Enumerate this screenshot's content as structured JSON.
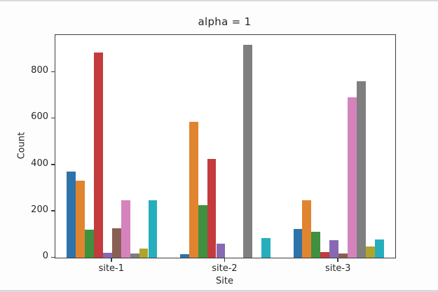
{
  "page": {
    "background": "#ffffff",
    "edge_strip_color": "#dadada"
  },
  "chart_data": {
    "type": "bar",
    "title": "alpha = 1",
    "xlabel": "Site",
    "ylabel": "Count",
    "categories": [
      "site-1",
      "site-2",
      "site-3"
    ],
    "series": [
      {
        "name": "blue",
        "color": "#2e73a9",
        "values": [
          372,
          15,
          123
        ]
      },
      {
        "name": "orange",
        "color": "#e1842f",
        "values": [
          331,
          587,
          247
        ]
      },
      {
        "name": "green",
        "color": "#3f9140",
        "values": [
          120,
          228,
          112
        ]
      },
      {
        "name": "red",
        "color": "#c33b3d",
        "values": [
          884,
          427,
          25
        ]
      },
      {
        "name": "purple",
        "color": "#8669b2",
        "values": [
          20,
          60,
          76
        ]
      },
      {
        "name": "brown",
        "color": "#8a5f53",
        "values": [
          126,
          0,
          19
        ]
      },
      {
        "name": "pink",
        "color": "#d583bd",
        "values": [
          249,
          0,
          690
        ]
      },
      {
        "name": "gray",
        "color": "#7f7f7f",
        "values": [
          18,
          918,
          762
        ]
      },
      {
        "name": "olive",
        "color": "#b0a42e",
        "values": [
          38,
          0,
          48
        ]
      },
      {
        "name": "cyan",
        "color": "#27aebc",
        "values": [
          248,
          85,
          78
        ]
      }
    ],
    "ylim": [
      0,
      960
    ],
    "yticks": [
      0,
      200,
      400,
      600,
      800
    ],
    "grid": false,
    "legend": "none",
    "bar_orientation": "vertical",
    "group_width_fraction": 0.8
  }
}
